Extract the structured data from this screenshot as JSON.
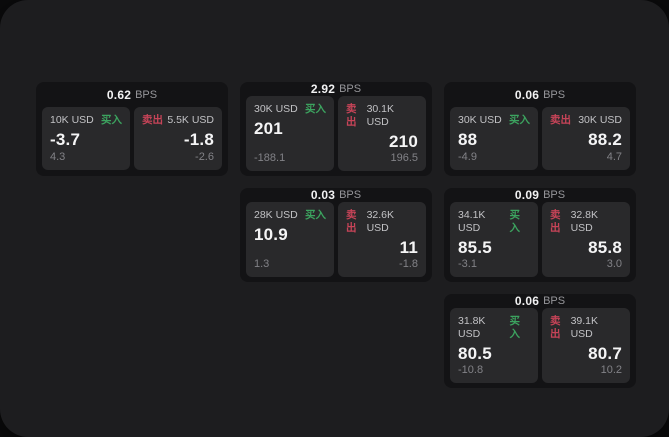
{
  "labels": {
    "bps_unit": "BPS",
    "buy": "买入",
    "sell": "卖出"
  },
  "colors": {
    "outer_bg": "#0b0b0c",
    "surface_bg": "#1d1d1f",
    "card_bg": "#131315",
    "tile_bg": "#29292b",
    "buy_green": "#3ca35f",
    "sell_red": "#c74458",
    "text_primary": "#f2f2f3",
    "text_muted": "#828287"
  },
  "cards": [
    {
      "bps": "0.62",
      "buy": {
        "amount": "10K USD",
        "price": "-3.7",
        "delta": "4.3"
      },
      "sell": {
        "amount": "5.5K USD",
        "price": "-1.8",
        "delta": "-2.6"
      }
    },
    {
      "bps": "2.92",
      "buy": {
        "amount": "30K USD",
        "price": "201",
        "delta": "-188.1"
      },
      "sell": {
        "amount": "30.1K USD",
        "price": "210",
        "delta": "196.5"
      }
    },
    {
      "bps": "0.06",
      "buy": {
        "amount": "30K USD",
        "price": "88",
        "delta": "-4.9"
      },
      "sell": {
        "amount": "30K USD",
        "price": "88.2",
        "delta": "4.7"
      }
    },
    {
      "bps": "0.03",
      "buy": {
        "amount": "28K USD",
        "price": "10.9",
        "delta": "1.3"
      },
      "sell": {
        "amount": "32.6K USD",
        "price": "11",
        "delta": "-1.8"
      }
    },
    {
      "bps": "0.09",
      "buy": {
        "amount": "34.1K USD",
        "price": "85.5",
        "delta": "-3.1"
      },
      "sell": {
        "amount": "32.8K USD",
        "price": "85.8",
        "delta": "3.0"
      }
    },
    {
      "bps": "0.06",
      "buy": {
        "amount": "31.8K USD",
        "price": "80.5",
        "delta": "-10.8"
      },
      "sell": {
        "amount": "39.1K USD",
        "price": "80.7",
        "delta": "10.2"
      }
    }
  ]
}
